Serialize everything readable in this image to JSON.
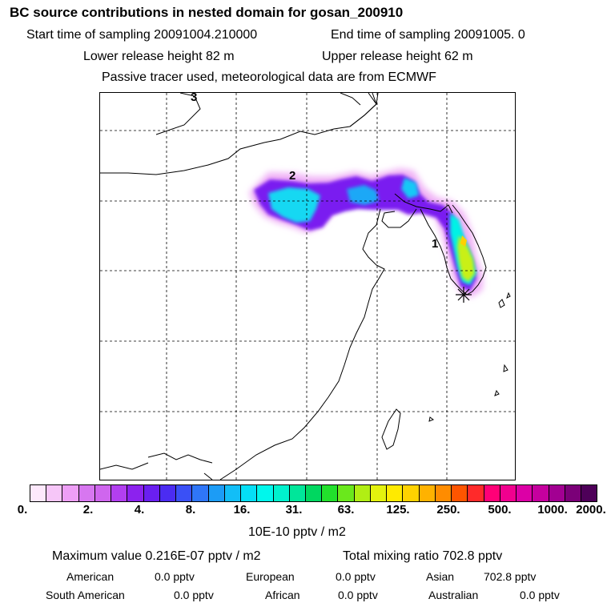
{
  "header": {
    "title": "BC  source contributions in nested domain for gosan_200910",
    "start_time": "Start time of sampling 20091004.210000",
    "end_time": "End time of sampling 20091005.     0",
    "lower_height": "Lower release height   82 m",
    "upper_height": "Upper release height   62 m",
    "tracer_note": "Passive tracer used, meteorological data are from ECMWF"
  },
  "map": {
    "region_labels": [
      "3",
      "2",
      "1"
    ],
    "receptor_marker": "receptor-star"
  },
  "colorbar": {
    "colors": [
      "#fde8fc",
      "#f6c6f8",
      "#ee9ff6",
      "#d777f0",
      "#cf66ee",
      "#b23ff0",
      "#8c22ee",
      "#6a1ff0",
      "#4b2cf2",
      "#3a50f6",
      "#2f76f8",
      "#1c9cf6",
      "#12bef7",
      "#05dff6",
      "#00f7ec",
      "#00f1cd",
      "#00e69a",
      "#00d760",
      "#22e02c",
      "#6ae81c",
      "#b1ee14",
      "#e4f20e",
      "#ffea00",
      "#ffd200",
      "#ffb200",
      "#ff8c00",
      "#ff5500",
      "#ff2a2a",
      "#ff0077",
      "#f1008f",
      "#dc00a6",
      "#c5009e",
      "#a20092",
      "#7b0078",
      "#4e0059"
    ],
    "tick_labels": [
      "0.",
      "2.",
      "4.",
      "8.",
      "16.",
      "31.",
      "63.",
      "125.",
      "250.",
      "500.",
      "1000.",
      "2000."
    ],
    "unit": "10E-10 pptv / m2"
  },
  "summary": {
    "maximum_value": "Maximum value  0.216E-07 pptv / m2",
    "total_mixing": "Total mixing ratio     702.8 pptv"
  },
  "regions": [
    {
      "name": "American",
      "value": "0.0 pptv"
    },
    {
      "name": "European",
      "value": "0.0 pptv"
    },
    {
      "name": "Asian",
      "value": "702.8 pptv"
    },
    {
      "name": "South American",
      "value": "0.0 pptv"
    },
    {
      "name": "African",
      "value": "0.0 pptv"
    },
    {
      "name": "Australian",
      "value": "0.0 pptv"
    }
  ]
}
